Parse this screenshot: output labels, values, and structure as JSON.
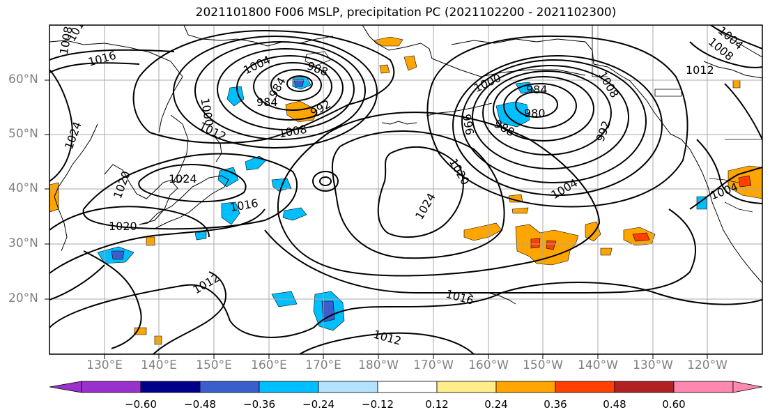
{
  "title": "2021101800 F006 MSLP, precipitation PC (2021102200 - 2021102300)",
  "latitude_labels": [
    "60°N",
    "50°N",
    "40°N",
    "30°N",
    "20°N"
  ],
  "longitude_labels": [
    "130°E",
    "140°E",
    "150°E",
    "160°E",
    "170°E",
    "180°W",
    "170°W",
    "160°W",
    "150°W",
    "140°W",
    "130°W",
    "120°W"
  ],
  "isobar_labels": [
    "1008",
    "1012",
    "1016",
    "1004",
    "988",
    "984",
    "992",
    "984",
    "1000",
    "1012",
    "1008",
    "1024",
    "1020",
    "1024",
    "1016",
    "1020",
    "1012",
    "1000",
    "984",
    "980",
    "988",
    "996",
    "992",
    "1004",
    "1008",
    "1012",
    "1008",
    "1004",
    "1020",
    "1024",
    "1016",
    "1012",
    "1004"
  ],
  "colorbar": {
    "tick_labels": [
      "−0.60",
      "−0.48",
      "−0.36",
      "−0.24",
      "−0.12",
      "0.12",
      "0.24",
      "0.36",
      "0.48",
      "0.60"
    ],
    "colors": [
      "#9932cc",
      "#00008b",
      "#3a5fcd",
      "#00bfff",
      "#b2e2ff",
      "#ffffff",
      "#ffec8b",
      "#ffa500",
      "#ff4000",
      "#b22222",
      "#ff88b0",
      "#ff88b0"
    ]
  }
}
